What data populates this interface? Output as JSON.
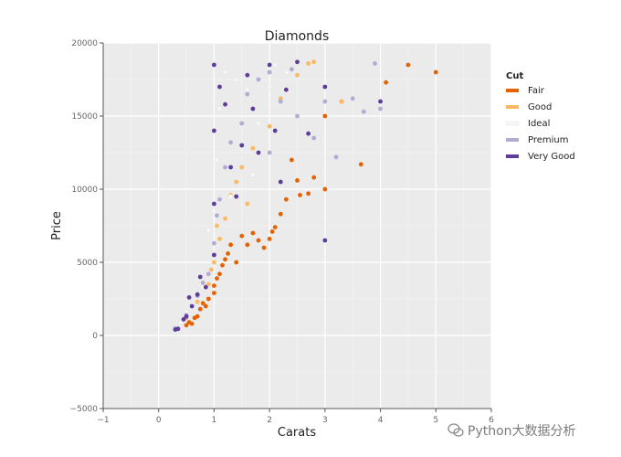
{
  "chart_data": {
    "type": "scatter",
    "title": "Diamonds",
    "xlabel": "Carats",
    "ylabel": "Price",
    "xlim": [
      -1,
      6
    ],
    "ylim": [
      -5000,
      20000
    ],
    "xticks": [
      -1,
      0,
      1,
      2,
      3,
      4,
      5,
      6
    ],
    "xtick_labels": [
      "−1",
      "0",
      "1",
      "2",
      "3",
      "4",
      "5",
      "6"
    ],
    "yticks": [
      -5000,
      0,
      5000,
      10000,
      15000,
      20000
    ],
    "ytick_labels": [
      "−5000",
      "0",
      "5000",
      "10000",
      "15000",
      "20000"
    ],
    "grid": true,
    "legend": {
      "title": "Cut",
      "placement": "right",
      "entries": [
        {
          "name": "Fair",
          "color": "#e66101"
        },
        {
          "name": "Good",
          "color": "#fdb863"
        },
        {
          "name": "Ideal",
          "color": "#f7f7f7"
        },
        {
          "name": "Premium",
          "color": "#b2abd2"
        },
        {
          "name": "Very Good",
          "color": "#5e3c99"
        }
      ]
    },
    "series": [
      {
        "name": "Fair",
        "color": "#e66101",
        "points": [
          [
            0.6,
            800
          ],
          [
            0.7,
            1300
          ],
          [
            0.75,
            1800
          ],
          [
            0.8,
            2200
          ],
          [
            0.9,
            2500
          ],
          [
            1.0,
            2900
          ],
          [
            1.0,
            3400
          ],
          [
            1.05,
            3900
          ],
          [
            1.1,
            4200
          ],
          [
            1.15,
            4800
          ],
          [
            1.2,
            5200
          ],
          [
            1.25,
            5600
          ],
          [
            1.3,
            6200
          ],
          [
            1.5,
            6800
          ],
          [
            1.6,
            6200
          ],
          [
            1.7,
            7000
          ],
          [
            1.8,
            6500
          ],
          [
            2.0,
            6600
          ],
          [
            2.05,
            7100
          ],
          [
            2.1,
            7400
          ],
          [
            2.2,
            8300
          ],
          [
            2.3,
            9300
          ],
          [
            2.5,
            10600
          ],
          [
            2.55,
            9600
          ],
          [
            2.7,
            9700
          ],
          [
            2.8,
            10800
          ],
          [
            3.0,
            10000
          ],
          [
            3.3,
            16000
          ],
          [
            3.65,
            11700
          ],
          [
            4.1,
            17300
          ],
          [
            4.5,
            18500
          ],
          [
            5.0,
            18000
          ],
          [
            0.5,
            700
          ],
          [
            0.55,
            900
          ],
          [
            0.65,
            1200
          ],
          [
            0.85,
            2000
          ],
          [
            1.4,
            5000
          ],
          [
            1.9,
            6000
          ],
          [
            2.4,
            12000
          ],
          [
            3.0,
            15000
          ]
        ]
      },
      {
        "name": "Good",
        "color": "#fdb863",
        "points": [
          [
            0.3,
            500
          ],
          [
            0.5,
            1200
          ],
          [
            0.7,
            2300
          ],
          [
            0.9,
            3500
          ],
          [
            1.0,
            5000
          ],
          [
            1.1,
            6600
          ],
          [
            1.2,
            8000
          ],
          [
            1.3,
            9600
          ],
          [
            1.5,
            11500
          ],
          [
            1.7,
            12800
          ],
          [
            2.0,
            14300
          ],
          [
            2.2,
            16200
          ],
          [
            2.5,
            17800
          ],
          [
            2.7,
            18600
          ],
          [
            2.8,
            18700
          ],
          [
            3.3,
            16000
          ],
          [
            1.6,
            9000
          ],
          [
            1.05,
            7500
          ],
          [
            0.95,
            4500
          ],
          [
            1.4,
            10500
          ]
        ]
      },
      {
        "name": "Ideal",
        "color": "#f7f7f7",
        "points": [
          [
            0.3,
            600
          ],
          [
            0.4,
            900
          ],
          [
            0.5,
            1600
          ],
          [
            0.6,
            2100
          ],
          [
            0.8,
            3300
          ],
          [
            1.0,
            5500
          ],
          [
            1.0,
            8500
          ],
          [
            1.05,
            12000
          ],
          [
            1.1,
            15500
          ],
          [
            1.2,
            18000
          ],
          [
            1.3,
            9500
          ],
          [
            1.5,
            13000
          ],
          [
            1.6,
            16800
          ],
          [
            1.8,
            14500
          ],
          [
            2.0,
            17000
          ],
          [
            2.1,
            18500
          ],
          [
            2.3,
            18000
          ],
          [
            1.4,
            17500
          ],
          [
            1.7,
            11000
          ],
          [
            0.9,
            7200
          ]
        ]
      },
      {
        "name": "Premium",
        "color": "#b2abd2",
        "points": [
          [
            0.3,
            500
          ],
          [
            0.5,
            1400
          ],
          [
            0.7,
            2700
          ],
          [
            0.9,
            4200
          ],
          [
            1.0,
            6300
          ],
          [
            1.1,
            9300
          ],
          [
            1.2,
            11500
          ],
          [
            1.5,
            14500
          ],
          [
            1.6,
            16500
          ],
          [
            2.0,
            12500
          ],
          [
            2.0,
            18000
          ],
          [
            2.2,
            16000
          ],
          [
            2.5,
            15000
          ],
          [
            2.8,
            13500
          ],
          [
            3.0,
            16000
          ],
          [
            3.2,
            12200
          ],
          [
            3.5,
            16200
          ],
          [
            3.7,
            15300
          ],
          [
            4.0,
            15500
          ],
          [
            3.9,
            18600
          ],
          [
            1.3,
            13200
          ],
          [
            1.8,
            17500
          ],
          [
            2.4,
            18200
          ],
          [
            1.05,
            8200
          ],
          [
            0.8,
            3600
          ]
        ]
      },
      {
        "name": "Very Good",
        "color": "#5e3c99",
        "points": [
          [
            0.3,
            400
          ],
          [
            0.35,
            450
          ],
          [
            0.5,
            1300
          ],
          [
            0.6,
            2000
          ],
          [
            0.7,
            2800
          ],
          [
            0.75,
            4000
          ],
          [
            1.0,
            5500
          ],
          [
            1.0,
            9000
          ],
          [
            1.0,
            14000
          ],
          [
            1.0,
            18500
          ],
          [
            1.1,
            17000
          ],
          [
            1.2,
            15800
          ],
          [
            1.3,
            11500
          ],
          [
            1.5,
            13000
          ],
          [
            1.6,
            17800
          ],
          [
            1.7,
            15500
          ],
          [
            2.0,
            18500
          ],
          [
            2.1,
            14000
          ],
          [
            2.3,
            16800
          ],
          [
            2.5,
            18700
          ],
          [
            2.7,
            13800
          ],
          [
            3.0,
            6500
          ],
          [
            3.0,
            17000
          ],
          [
            4.0,
            16000
          ],
          [
            0.55,
            2600
          ],
          [
            0.45,
            1100
          ],
          [
            0.85,
            3300
          ],
          [
            1.4,
            9500
          ],
          [
            1.8,
            12500
          ],
          [
            2.2,
            10500
          ]
        ]
      }
    ]
  },
  "watermark": {
    "text": "Python大数据分析"
  }
}
